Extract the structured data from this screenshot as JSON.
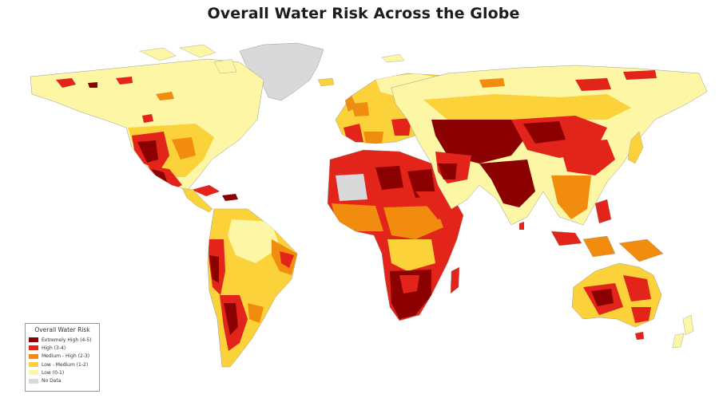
{
  "title": "Overall Water Risk Across the Globe",
  "legend": {
    "title": "Overall Water Risk",
    "items": [
      {
        "label": "Extremely High (4-5)",
        "color": "#8b0000"
      },
      {
        "label": "High (3-4)",
        "color": "#e3241b"
      },
      {
        "label": "Medium - High (2-3)",
        "color": "#f28c0f"
      },
      {
        "label": "Low - Medium (1-2)",
        "color": "#fcd23a"
      },
      {
        "label": "Low (0-1)",
        "color": "#fdf7a5"
      },
      {
        "label": "No Data",
        "color": "#d9d9d9"
      }
    ]
  }
}
